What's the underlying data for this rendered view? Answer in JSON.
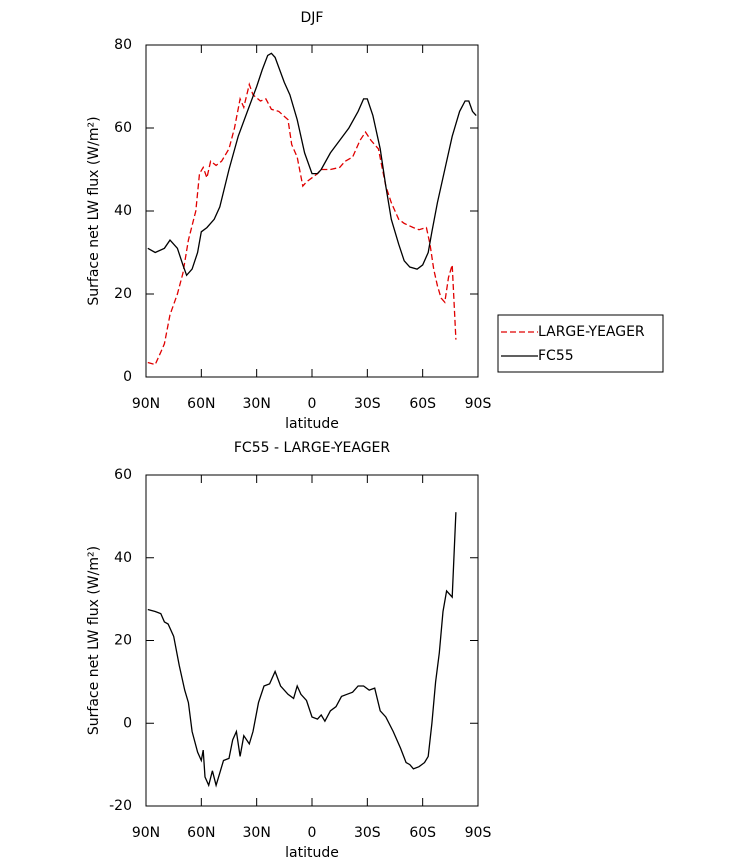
{
  "chart_data": [
    {
      "type": "line",
      "title": "DJF",
      "xlabel": "latitude",
      "ylabel": "Surface net LW flux (W/m²)",
      "xlim": [
        90,
        -90
      ],
      "ylim": [
        0,
        80
      ],
      "xticks": [
        {
          "value": 90,
          "label": "90N"
        },
        {
          "value": 60,
          "label": "60N"
        },
        {
          "value": 30,
          "label": "30N"
        },
        0,
        {
          "value": -30,
          "label": "30S"
        },
        {
          "value": -60,
          "label": "60S"
        },
        {
          "value": -90,
          "label": "90S"
        }
      ],
      "yticks": [
        0,
        20,
        40,
        60,
        80
      ],
      "legend": "outside-right",
      "series": [
        {
          "name": "LARGE-YEAGER",
          "color": "#e00000",
          "dash": "dashed",
          "x": [
            89,
            85,
            82,
            80,
            77,
            73,
            70,
            67,
            63,
            61,
            59,
            57,
            55,
            52,
            49,
            45,
            42,
            39,
            37,
            34,
            32,
            28,
            25,
            22,
            18,
            13,
            11,
            8,
            5,
            3,
            0,
            -3,
            -5,
            -10,
            -15,
            -18,
            -22,
            -26,
            -29,
            -32,
            -36,
            -40,
            -43,
            -47,
            -50,
            -55,
            -58,
            -62,
            -64,
            -66,
            -68,
            -70,
            -72,
            -74,
            -76,
            -78
          ],
          "values": [
            3.5,
            3,
            6,
            8,
            15,
            20,
            25,
            33,
            40,
            49,
            50.5,
            48,
            52,
            51,
            52,
            55,
            60,
            67,
            65,
            70.5,
            68,
            66.5,
            67,
            64.5,
            64,
            62,
            56,
            53,
            46,
            47,
            48,
            49,
            50,
            50,
            50.5,
            52,
            53,
            57,
            59,
            57,
            55,
            46,
            42,
            38,
            37,
            36,
            35.5,
            36,
            32,
            26,
            22,
            19,
            18,
            24,
            27,
            9
          ]
        },
        {
          "name": "FC55",
          "color": "#000000",
          "dash": "solid",
          "x": [
            89,
            85,
            80,
            77,
            73,
            70,
            68,
            65,
            62,
            60,
            57,
            53,
            50,
            45,
            40,
            35,
            30,
            27,
            24,
            22,
            20,
            15,
            12,
            8,
            4,
            0,
            -3,
            -5,
            -10,
            -15,
            -20,
            -25,
            -28,
            -30,
            -33,
            -37,
            -40,
            -43,
            -47,
            -50,
            -53,
            -57,
            -60,
            -63,
            -65,
            -68,
            -72,
            -76,
            -80,
            -83,
            -85,
            -87,
            -89
          ],
          "values": [
            31,
            30,
            31,
            33,
            31,
            27,
            24.5,
            26,
            30,
            35,
            36,
            38,
            41,
            50,
            58,
            64,
            70,
            74,
            77.5,
            78,
            77,
            71,
            68,
            62,
            54,
            49,
            49,
            50,
            54,
            57,
            60,
            64,
            67,
            67,
            63,
            55,
            46,
            38,
            32,
            28,
            26.5,
            26,
            27,
            30,
            35,
            42,
            50,
            58,
            64,
            66.5,
            66.5,
            64,
            63
          ]
        }
      ]
    },
    {
      "type": "line",
      "title": "FC55 - LARGE-YEAGER",
      "xlabel": "latitude",
      "ylabel": "Surface net LW flux (W/m²)",
      "xlim": [
        90,
        -90
      ],
      "ylim": [
        -20,
        60
      ],
      "xticks": [
        {
          "value": 90,
          "label": "90N"
        },
        {
          "value": 60,
          "label": "60N"
        },
        {
          "value": 30,
          "label": "30N"
        },
        0,
        {
          "value": -30,
          "label": "30S"
        },
        {
          "value": -60,
          "label": "60S"
        },
        {
          "value": -90,
          "label": "90S"
        }
      ],
      "yticks": [
        -20,
        0,
        20,
        40,
        60
      ],
      "series": [
        {
          "color": "#000000",
          "dash": "solid",
          "x": [
            89,
            85,
            82,
            80,
            78,
            75,
            72,
            69,
            67,
            65,
            62,
            60,
            59,
            58,
            56,
            54,
            52,
            50,
            48,
            45,
            43,
            41,
            39,
            37,
            34,
            32,
            29,
            26,
            23,
            20,
            17,
            13,
            10,
            8,
            6,
            3,
            0,
            -3,
            -5,
            -7,
            -10,
            -13,
            -16,
            -19,
            -22,
            -25,
            -28,
            -31,
            -34,
            -37,
            -40,
            -44,
            -48,
            -51,
            -53,
            -55,
            -58,
            -61,
            -63,
            -65,
            -67,
            -69,
            -71,
            -73,
            -76,
            -78
          ],
          "values": [
            27.5,
            27,
            26.5,
            24.5,
            24,
            21,
            14,
            8,
            5,
            -2,
            -7,
            -9,
            -6.5,
            -13,
            -15,
            -11.5,
            -15,
            -12,
            -9,
            -8.5,
            -4,
            -2,
            -8,
            -3,
            -5,
            -2,
            5,
            9,
            9.5,
            12.5,
            9,
            7,
            6,
            9,
            7,
            5.5,
            1.5,
            1,
            2,
            0.5,
            3,
            4,
            6.5,
            7,
            7.5,
            9,
            9,
            8,
            8.5,
            3,
            1.5,
            -2,
            -6,
            -9.5,
            -10,
            -11,
            -10.5,
            -9.5,
            -8,
            0,
            10,
            17,
            27,
            32,
            30.5,
            51
          ]
        }
      ]
    }
  ]
}
